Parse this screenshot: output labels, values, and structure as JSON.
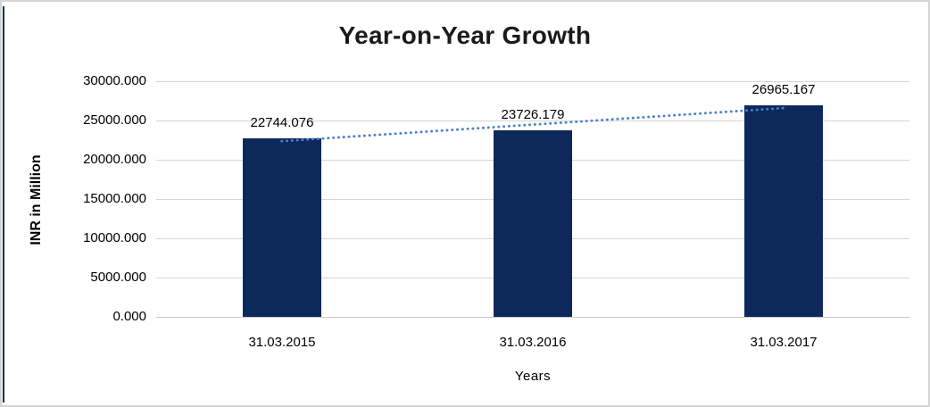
{
  "window": {
    "background": "#ffffff",
    "outer_border_color": "#d4d4d4",
    "left_edge_color": "#1c2f52"
  },
  "chart_data": {
    "type": "bar",
    "title": "Year-on-Year Growth",
    "categories": [
      "31.03.2015",
      "31.03.2016",
      "31.03.2017"
    ],
    "values": [
      22744.076,
      23726.179,
      26965.167
    ],
    "data_labels": [
      "22744.076",
      "23726.179",
      "26965.167"
    ],
    "xlabel": "Years",
    "ylabel": "INR in Million",
    "ylim": [
      0,
      30000
    ],
    "ytick_interval": 5000,
    "ytick_labels": [
      "0.000",
      "5000.000",
      "10000.000",
      "15000.000",
      "20000.000",
      "25000.000",
      "30000.000"
    ],
    "grid": "horizontal",
    "legend_position": "none",
    "trendline": {
      "type": "linear",
      "style": "dotted"
    },
    "colors": {
      "bar": "#0d295c",
      "trendline": "#4a82c6",
      "gridline": "#d6d6d6",
      "axis_line": "#c9c9c9",
      "text": "#000000",
      "title": "#1a1a1a"
    }
  }
}
